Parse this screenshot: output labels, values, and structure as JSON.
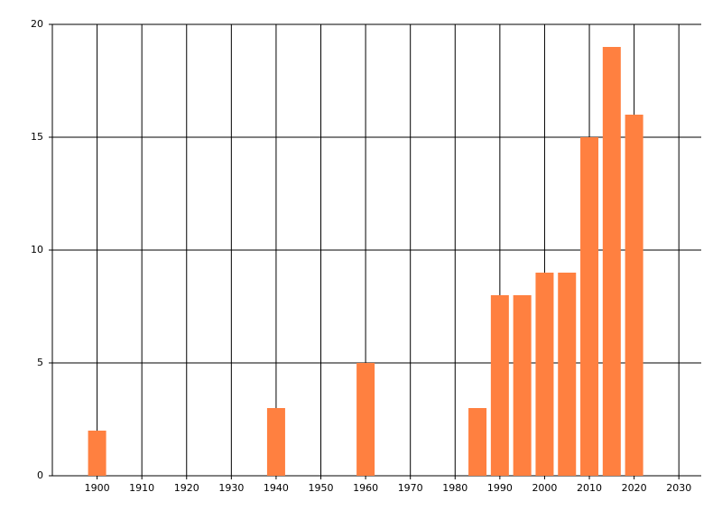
{
  "chart_data": {
    "type": "bar",
    "x": [
      1900,
      1940,
      1960,
      1985,
      1990,
      1995,
      2000,
      2005,
      2010,
      2015,
      2020
    ],
    "values": [
      2,
      3,
      5,
      3,
      8,
      8,
      9,
      9,
      15,
      19,
      16
    ],
    "color": "#ff8040",
    "xlim": [
      1890,
      2035
    ],
    "xticks": [
      1900,
      1910,
      1920,
      1930,
      1940,
      1950,
      1960,
      1970,
      1980,
      1990,
      2000,
      2010,
      2020,
      2030
    ],
    "ylim": [
      0,
      20
    ],
    "yticks": [
      0,
      5,
      10,
      15,
      20
    ],
    "grid": true
  }
}
